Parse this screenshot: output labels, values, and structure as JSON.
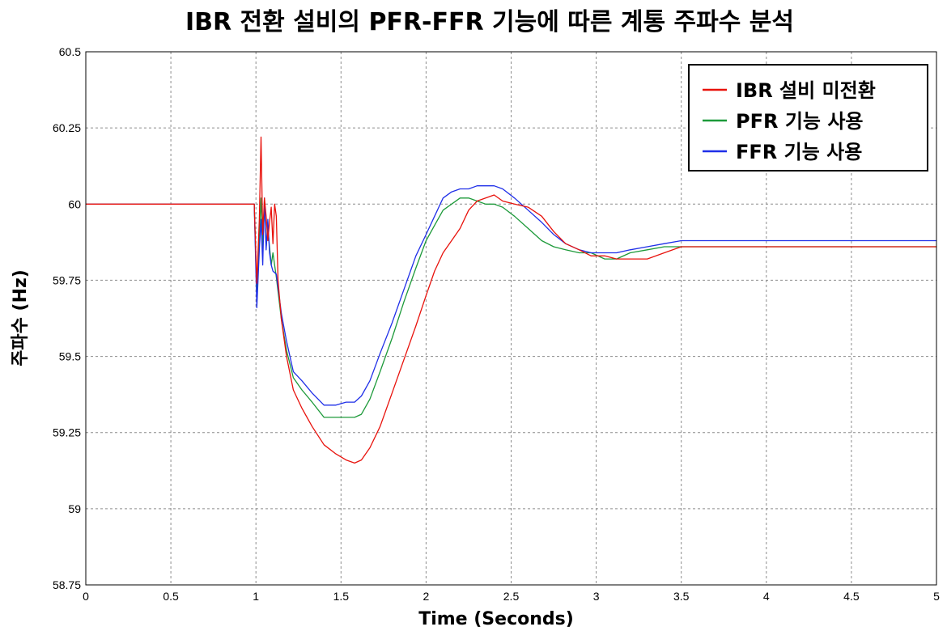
{
  "chart_data": {
    "type": "line",
    "title": "IBR 전환 설비의 PFR-FFR 기능에 따른 계통 주파수 분석",
    "xlabel": "Time (Seconds)",
    "ylabel": "주파수 (Hz)",
    "xlim": [
      0,
      5
    ],
    "ylim": [
      58.75,
      60.5
    ],
    "x_ticks": [
      "0",
      "0.5",
      "1",
      "1.5",
      "2",
      "2.5",
      "3",
      "3.5",
      "4",
      "4.5",
      "5"
    ],
    "y_ticks": [
      "60.5",
      "60.25",
      "60",
      "59.75",
      "59.5",
      "59.25",
      "59",
      "58.75"
    ],
    "grid": true,
    "legend_position": "top-right",
    "series": [
      {
        "name": "IBR 설비 미전환",
        "color": "#e8120c",
        "x": [
          0,
          0.99,
          1.005,
          1.02,
          1.03,
          1.04,
          1.05,
          1.06,
          1.07,
          1.08,
          1.09,
          1.1,
          1.11,
          1.12,
          1.13,
          1.15,
          1.18,
          1.22,
          1.27,
          1.33,
          1.4,
          1.47,
          1.53,
          1.58,
          1.62,
          1.67,
          1.73,
          1.8,
          1.87,
          1.94,
          2.0,
          2.05,
          2.1,
          2.15,
          2.2,
          2.25,
          2.3,
          2.35,
          2.4,
          2.45,
          2.52,
          2.6,
          2.68,
          2.75,
          2.82,
          2.9,
          2.97,
          3.05,
          3.12,
          3.2,
          3.3,
          3.4,
          3.5,
          3.6,
          3.7,
          3.8,
          3.9,
          4.0,
          4.2,
          4.4,
          4.6,
          4.8,
          5.0
        ],
        "y": [
          60.0,
          60.0,
          59.74,
          59.95,
          60.22,
          59.9,
          60.02,
          59.96,
          59.88,
          59.94,
          59.99,
          59.87,
          60.0,
          59.96,
          59.75,
          59.62,
          59.5,
          59.39,
          59.33,
          59.27,
          59.21,
          59.18,
          59.16,
          59.15,
          59.16,
          59.2,
          59.27,
          59.38,
          59.49,
          59.6,
          59.7,
          59.78,
          59.84,
          59.88,
          59.92,
          59.98,
          60.01,
          60.02,
          60.03,
          60.01,
          60.0,
          59.99,
          59.96,
          59.91,
          59.87,
          59.85,
          59.83,
          59.83,
          59.82,
          59.82,
          59.82,
          59.84,
          59.86,
          59.86,
          59.86,
          59.86,
          59.86,
          59.86,
          59.86,
          59.86,
          59.86,
          59.86,
          59.86
        ]
      },
      {
        "name": "PFR 기능 사용",
        "color": "#1d9a3a",
        "x": [
          0,
          0.99,
          1.005,
          1.02,
          1.03,
          1.04,
          1.05,
          1.06,
          1.07,
          1.08,
          1.09,
          1.1,
          1.12,
          1.15,
          1.18,
          1.22,
          1.27,
          1.33,
          1.4,
          1.47,
          1.53,
          1.58,
          1.62,
          1.67,
          1.73,
          1.8,
          1.87,
          1.94,
          2.0,
          2.05,
          2.1,
          2.15,
          2.2,
          2.25,
          2.3,
          2.35,
          2.4,
          2.45,
          2.52,
          2.6,
          2.68,
          2.75,
          2.82,
          2.9,
          2.97,
          3.05,
          3.12,
          3.2,
          3.3,
          3.4,
          3.5,
          3.6,
          3.7,
          3.8,
          3.9,
          4.0,
          4.2,
          4.4,
          4.6,
          4.8,
          5.0
        ],
        "y": [
          60.0,
          60.0,
          59.7,
          59.9,
          60.02,
          59.85,
          60.0,
          59.86,
          59.92,
          59.86,
          59.8,
          59.84,
          59.76,
          59.62,
          59.52,
          59.43,
          59.39,
          59.35,
          59.3,
          59.3,
          59.3,
          59.3,
          59.31,
          59.36,
          59.45,
          59.56,
          59.68,
          59.79,
          59.88,
          59.93,
          59.98,
          60.0,
          60.02,
          60.02,
          60.01,
          60.0,
          60.0,
          59.99,
          59.96,
          59.92,
          59.88,
          59.86,
          59.85,
          59.84,
          59.84,
          59.82,
          59.82,
          59.84,
          59.85,
          59.86,
          59.86,
          59.86,
          59.86,
          59.86,
          59.86,
          59.86,
          59.86,
          59.86,
          59.86,
          59.86,
          59.86
        ]
      },
      {
        "name": "FFR 기능 사용",
        "color": "#1f2fe8",
        "x": [
          0,
          0.99,
          1.005,
          1.02,
          1.03,
          1.04,
          1.05,
          1.06,
          1.07,
          1.08,
          1.09,
          1.1,
          1.12,
          1.15,
          1.18,
          1.22,
          1.27,
          1.33,
          1.4,
          1.47,
          1.53,
          1.58,
          1.62,
          1.67,
          1.73,
          1.8,
          1.87,
          1.94,
          2.0,
          2.05,
          2.1,
          2.15,
          2.2,
          2.25,
          2.3,
          2.35,
          2.4,
          2.45,
          2.52,
          2.6,
          2.68,
          2.75,
          2.82,
          2.9,
          2.97,
          3.05,
          3.12,
          3.2,
          3.3,
          3.4,
          3.5,
          3.6,
          3.7,
          3.8,
          3.9,
          4.0,
          4.2,
          4.4,
          4.6,
          4.8,
          5.0
        ],
        "y": [
          60.0,
          60.0,
          59.66,
          59.85,
          59.95,
          59.8,
          60.02,
          59.85,
          59.95,
          59.84,
          59.8,
          59.78,
          59.77,
          59.64,
          59.55,
          59.45,
          59.42,
          59.38,
          59.34,
          59.34,
          59.35,
          59.35,
          59.37,
          59.42,
          59.51,
          59.61,
          59.72,
          59.83,
          59.9,
          59.96,
          60.02,
          60.04,
          60.05,
          60.05,
          60.06,
          60.06,
          60.06,
          60.05,
          60.02,
          59.98,
          59.94,
          59.9,
          59.87,
          59.85,
          59.84,
          59.84,
          59.84,
          59.85,
          59.86,
          59.87,
          59.88,
          59.88,
          59.88,
          59.88,
          59.88,
          59.88,
          59.88,
          59.88,
          59.88,
          59.88,
          59.88
        ]
      }
    ]
  }
}
